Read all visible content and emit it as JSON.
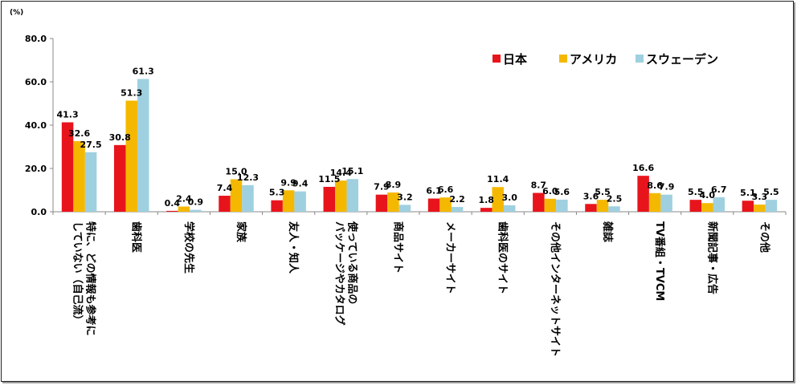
{
  "chart_data": {
    "type": "bar",
    "unit": "(%)",
    "ylim": [
      0,
      80
    ],
    "yticks": [
      "0.0",
      "20.0",
      "40.0",
      "60.0",
      "80.0"
    ],
    "grid": false,
    "legend_position": "top-right",
    "categories": [
      [
        "特に、どの情報も参考に",
        "していない（自己流）"
      ],
      [
        "歯科医"
      ],
      [
        "学校の先生"
      ],
      [
        "家族"
      ],
      [
        "友人・知人"
      ],
      [
        "使っている商品の",
        "パッケージやカタログ"
      ],
      [
        "商品サイト"
      ],
      [
        "メーカーサイト"
      ],
      [
        "歯科医のサイト"
      ],
      [
        "その他インターネットサイト"
      ],
      [
        "雑誌"
      ],
      [
        "TV番組・TVCM"
      ],
      [
        "新聞記事・広告"
      ],
      [
        "その他"
      ]
    ],
    "series": [
      {
        "name": "日本",
        "color": "#e8141c",
        "values": [
          41.3,
          30.8,
          0.4,
          7.4,
          5.3,
          11.5,
          7.9,
          6.1,
          1.8,
          8.7,
          3.6,
          16.6,
          5.5,
          5.1
        ],
        "labels": [
          "41.3",
          "30.8",
          "0.4",
          "7.4",
          "5.3",
          "11.5",
          "7.9",
          "6.1",
          "1.8",
          "8.7",
          "3.6",
          "16.6",
          "5.5",
          "5.1"
        ]
      },
      {
        "name": "アメリカ",
        "color": "#f5b800",
        "values": [
          32.6,
          51.3,
          2.4,
          15.0,
          9.9,
          14.4,
          8.9,
          6.6,
          11.4,
          6.0,
          5.5,
          8.6,
          4.0,
          3.3
        ],
        "labels": [
          "32.6",
          "51.3",
          "2.4",
          "15.0",
          "9.9",
          "14.4",
          "8.9",
          "6.6",
          "11.4",
          "6.0",
          "5.5",
          "8.6",
          "4.0",
          "3.3"
        ]
      },
      {
        "name": "スウェーデン",
        "color": "#9fd0e0",
        "values": [
          27.5,
          61.3,
          0.9,
          12.3,
          9.4,
          15.1,
          3.2,
          2.2,
          3.0,
          5.6,
          2.5,
          7.9,
          6.7,
          5.5
        ],
        "labels": [
          "27.5",
          "61.3",
          "0.9",
          "12.3",
          "9.4",
          "15.1",
          "3.2",
          "2.2",
          "3.0",
          "5.6",
          "2.5",
          "7.9",
          "6.7",
          "5.5"
        ]
      }
    ]
  }
}
